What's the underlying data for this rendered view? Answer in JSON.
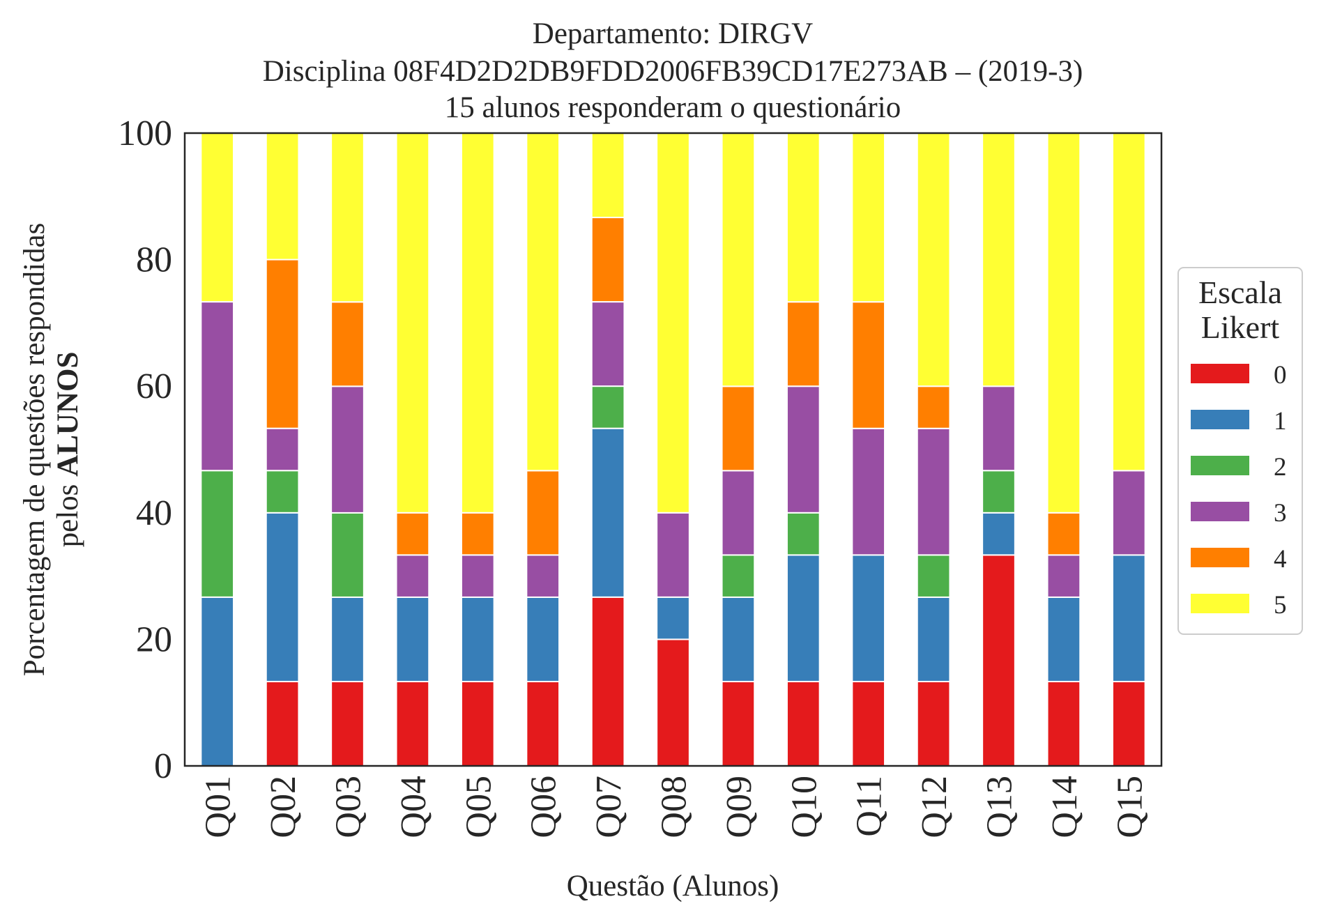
{
  "chart_data": {
    "type": "bar",
    "stacked": true,
    "title_lines": [
      "Departamento: DIRGV",
      "Disciplina 08F4D2D2DB9FDD2006FB39CD17E273AB – (2019-3)",
      "15 alunos responderam o questionário"
    ],
    "xlabel": "Questão (Alunos)",
    "ylabel_line1": "Porcentagem de questões respondidas",
    "ylabel_line2_prefix": "pelos ",
    "ylabel_line2_bold": "ALUNOS",
    "ylim": [
      0,
      100
    ],
    "yticks": [
      "0",
      "20",
      "40",
      "60",
      "80",
      "100"
    ],
    "grid": false,
    "legend": {
      "title_lines": [
        "Escala",
        "Likert"
      ],
      "placement": "center-right"
    },
    "categories": [
      "Q01",
      "Q02",
      "Q03",
      "Q04",
      "Q05",
      "Q06",
      "Q07",
      "Q08",
      "Q09",
      "Q10",
      "Q11",
      "Q12",
      "Q13",
      "Q14",
      "Q15"
    ],
    "series": [
      {
        "name": "0",
        "color": "#e41a1c",
        "values": [
          0,
          13.33,
          13.33,
          13.33,
          13.33,
          13.33,
          26.67,
          20,
          13.33,
          13.33,
          13.33,
          13.33,
          33.33,
          13.33,
          13.33
        ]
      },
      {
        "name": "1",
        "color": "#377eb8",
        "values": [
          26.67,
          26.67,
          13.33,
          13.33,
          13.33,
          13.33,
          26.67,
          6.67,
          13.33,
          20,
          20,
          13.33,
          6.67,
          13.33,
          20
        ]
      },
      {
        "name": "2",
        "color": "#4daf4a",
        "values": [
          20,
          6.67,
          13.33,
          0,
          0,
          0,
          6.67,
          0,
          6.67,
          6.67,
          0,
          6.67,
          6.67,
          0,
          0
        ]
      },
      {
        "name": "3",
        "color": "#984ea3",
        "values": [
          26.67,
          6.67,
          20,
          6.67,
          6.67,
          6.67,
          13.33,
          13.33,
          13.33,
          20,
          20,
          20,
          13.33,
          6.67,
          13.33
        ]
      },
      {
        "name": "4",
        "color": "#ff7f00",
        "values": [
          0,
          26.67,
          13.33,
          6.67,
          6.67,
          13.33,
          13.33,
          0,
          13.33,
          13.33,
          20,
          6.67,
          0,
          6.67,
          0
        ]
      },
      {
        "name": "5",
        "color": "#ffff33",
        "values": [
          26.67,
          20,
          26.67,
          60,
          60,
          53.33,
          13.33,
          60,
          40,
          26.67,
          26.67,
          40,
          40,
          60,
          53.33
        ]
      }
    ]
  }
}
